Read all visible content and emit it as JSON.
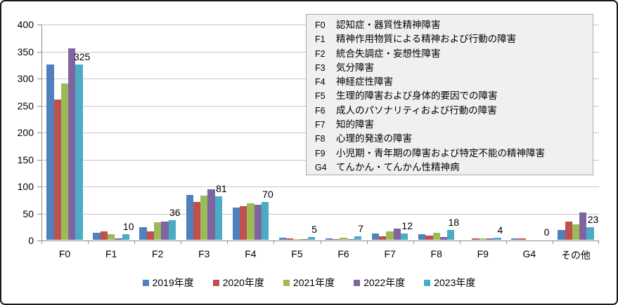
{
  "chart_data": {
    "type": "bar",
    "title": "",
    "categories": [
      "F0",
      "F1",
      "F2",
      "F3",
      "F4",
      "F5",
      "F6",
      "F7",
      "F8",
      "F9",
      "G4",
      "その他"
    ],
    "series": [
      {
        "name": "2019年度",
        "color": "#4F81BD",
        "values": [
          325,
          13,
          23,
          83,
          60,
          4,
          3,
          12,
          10,
          0,
          3,
          18
        ]
      },
      {
        "name": "2020年度",
        "color": "#C0504D",
        "values": [
          260,
          16,
          15,
          70,
          63,
          2,
          1,
          7,
          8,
          3,
          2,
          34
        ]
      },
      {
        "name": "2021年度",
        "color": "#9BBB59",
        "values": [
          290,
          10,
          32,
          82,
          68,
          1,
          4,
          16,
          13,
          2,
          0,
          29
        ]
      },
      {
        "name": "2022年度",
        "color": "#8064A2",
        "values": [
          355,
          3,
          34,
          93,
          65,
          1,
          1,
          21,
          5,
          2,
          0,
          51
        ]
      },
      {
        "name": "2023年度",
        "color": "#4BACC6",
        "values": [
          325,
          10,
          36,
          81,
          70,
          5,
          7,
          12,
          18,
          4,
          0,
          23
        ]
      }
    ],
    "data_labels": {
      "series": "2023年度",
      "values": [
        325,
        10,
        36,
        81,
        70,
        5,
        7,
        12,
        18,
        4,
        0,
        23
      ]
    },
    "ylim": [
      0,
      400
    ],
    "ytick_interval": 50,
    "ytick_labels": [
      "0",
      "50",
      "100",
      "150",
      "200",
      "250",
      "300",
      "350",
      "400"
    ],
    "grid": true,
    "legend_position": "bottom"
  },
  "annotation_box": {
    "items": [
      {
        "code": "F0",
        "label": "認知症・器質性精神障害"
      },
      {
        "code": "F1",
        "label": "精神作用物質による精神および行動の障害"
      },
      {
        "code": "F2",
        "label": "統合失調症・妄想性障害"
      },
      {
        "code": "F3",
        "label": "気分障害"
      },
      {
        "code": "F4",
        "label": "神経症性障害"
      },
      {
        "code": "F5",
        "label": "生理的障害および身体的要因での障害"
      },
      {
        "code": "F6",
        "label": "成人のパソナリティおよび行動の障害"
      },
      {
        "code": "F7",
        "label": "知的障害"
      },
      {
        "code": "F8",
        "label": "心理的発達の障害"
      },
      {
        "code": "F9",
        "label": "小児期・青年期の障害および特定不能の精神障害"
      },
      {
        "code": "G4",
        "label": "てんかん・てんかん性精神病"
      }
    ]
  },
  "colors": {
    "background": "#FFFFFF",
    "chart_border": "#1A1A1A",
    "gridline": "#C6C6C6",
    "axis": "#8C8C8C",
    "annotation_fill": "#F0F0F0",
    "annotation_border": "#A9A9A9",
    "text": "#000000"
  }
}
